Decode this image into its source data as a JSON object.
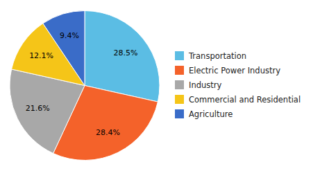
{
  "chart_data": {
    "type": "pie",
    "categories": [
      "Transportation",
      "Electric Power Industry",
      "Industry",
      "Commercial and Residential",
      "Agriculture"
    ],
    "values": [
      28.5,
      28.4,
      21.6,
      12.1,
      9.4
    ],
    "value_labels": [
      "28.5%",
      "28.4%",
      "21.6%",
      "12.1%",
      "9.4%"
    ],
    "colors": [
      "#5BBDE4",
      "#F4622A",
      "#A8A8A8",
      "#F5C518",
      "#3A6CC8"
    ],
    "data_labels": true,
    "legend": "right"
  }
}
